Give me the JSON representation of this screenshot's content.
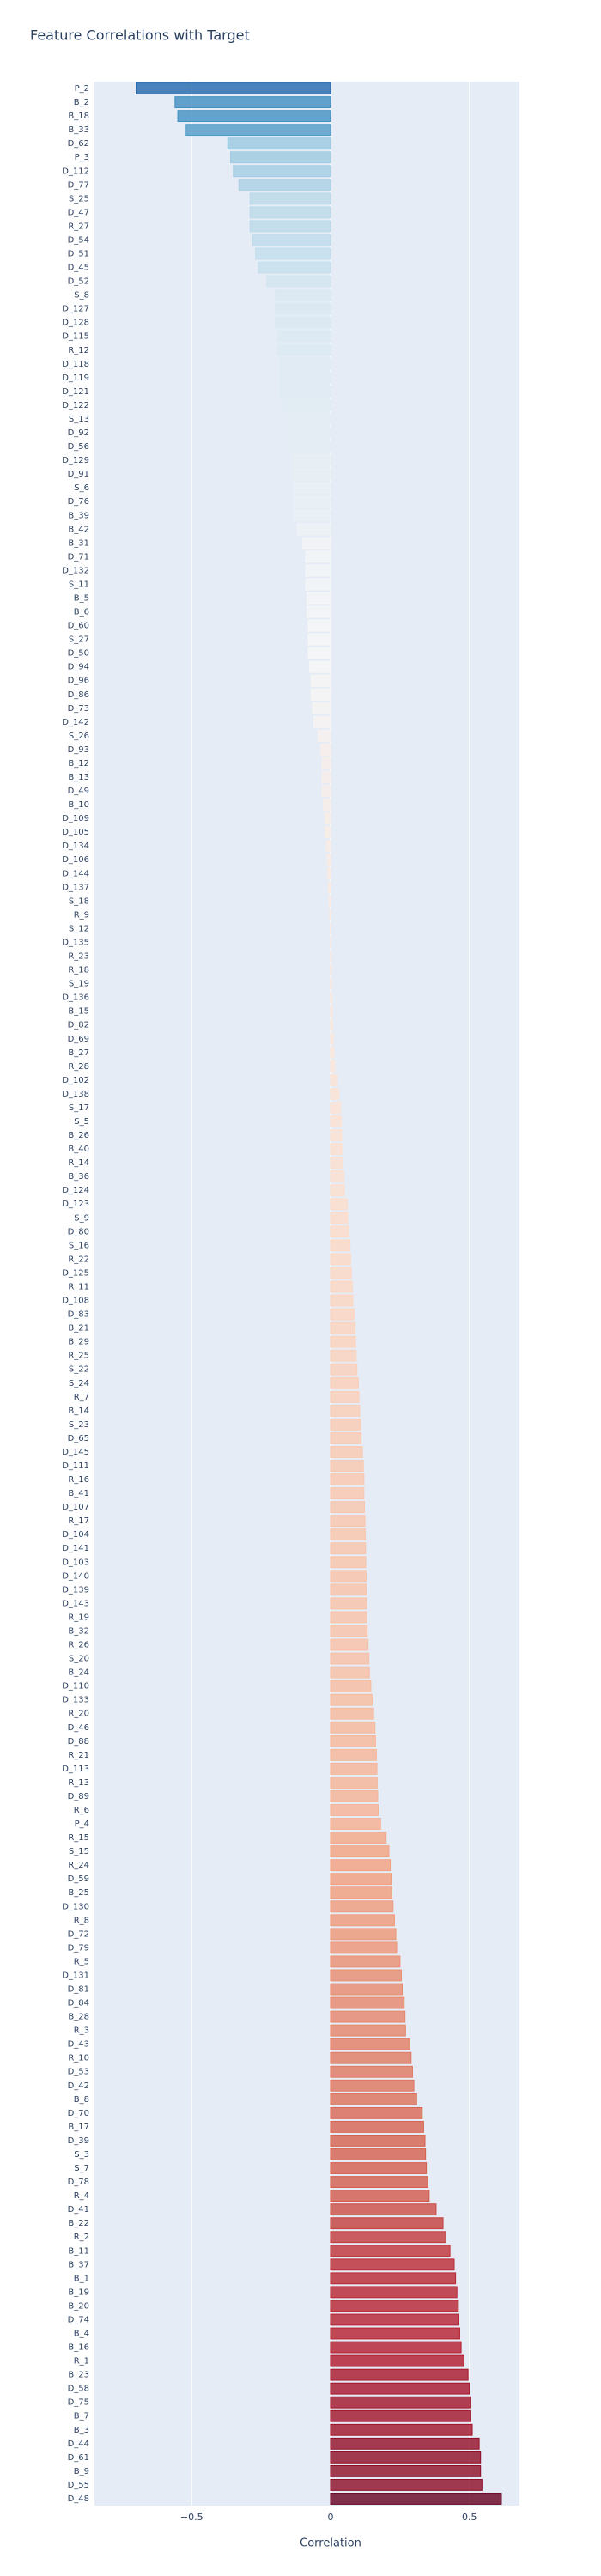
{
  "chart_data": {
    "type": "bar",
    "orientation": "horizontal",
    "title": "Feature Correlations with Target",
    "x_label": "Correlation",
    "categories": [
      "P_2",
      "B_2",
      "B_18",
      "B_33",
      "D_62",
      "P_3",
      "D_112",
      "D_77",
      "S_25",
      "D_47",
      "R_27",
      "D_54",
      "D_51",
      "D_45",
      "D_52",
      "S_8",
      "D_127",
      "D_128",
      "D_115",
      "R_12",
      "D_118",
      "D_119",
      "D_121",
      "D_122",
      "S_13",
      "D_92",
      "D_56",
      "D_129",
      "D_91",
      "S_6",
      "D_76",
      "B_39",
      "B_42",
      "B_31",
      "D_71",
      "D_132",
      "S_11",
      "B_5",
      "B_6",
      "D_60",
      "S_27",
      "D_50",
      "D_94",
      "D_96",
      "D_86",
      "D_73",
      "D_142",
      "S_26",
      "D_93",
      "B_12",
      "B_13",
      "D_49",
      "B_10",
      "D_109",
      "D_105",
      "D_134",
      "D_106",
      "D_144",
      "D_137",
      "S_18",
      "R_9",
      "S_12",
      "D_135",
      "R_23",
      "R_18",
      "S_19",
      "D_136",
      "B_15",
      "D_82",
      "D_69",
      "B_27",
      "R_28",
      "D_102",
      "D_138",
      "S_17",
      "S_5",
      "B_26",
      "B_40",
      "R_14",
      "B_36",
      "D_124",
      "D_123",
      "S_9",
      "D_80",
      "S_16",
      "R_22",
      "D_125",
      "R_11",
      "D_108",
      "D_83",
      "B_21",
      "B_29",
      "R_25",
      "S_22",
      "S_24",
      "R_7",
      "B_14",
      "S_23",
      "D_65",
      "D_145",
      "D_111",
      "R_16",
      "B_41",
      "D_107",
      "R_17",
      "D_104",
      "D_141",
      "D_103",
      "D_140",
      "D_139",
      "D_143",
      "R_19",
      "B_32",
      "R_26",
      "S_20",
      "B_24",
      "D_110",
      "D_133",
      "R_20",
      "D_46",
      "D_88",
      "R_21",
      "D_113",
      "R_13",
      "D_89",
      "R_6",
      "P_4",
      "R_15",
      "S_15",
      "R_24",
      "D_59",
      "B_25",
      "D_130",
      "R_8",
      "D_72",
      "D_79",
      "R_5",
      "D_131",
      "D_81",
      "D_84",
      "B_28",
      "R_3",
      "D_43",
      "R_10",
      "D_53",
      "D_42",
      "B_8",
      "D_70",
      "B_17",
      "D_39",
      "S_3",
      "S_7",
      "D_78",
      "R_4",
      "D_41",
      "B_22",
      "R_2",
      "B_11",
      "B_37",
      "B_1",
      "B_19",
      "B_20",
      "D_74",
      "B_4",
      "B_16",
      "R_1",
      "B_23",
      "D_58",
      "D_75",
      "B_7",
      "B_3",
      "D_44",
      "D_61",
      "B_9",
      "D_55",
      "D_48"
    ],
    "values": [
      -0.7,
      -0.56,
      -0.55,
      -0.52,
      -0.37,
      -0.36,
      -0.35,
      -0.33,
      -0.29,
      -0.29,
      -0.29,
      -0.28,
      -0.27,
      -0.26,
      -0.23,
      -0.2,
      -0.2,
      -0.2,
      -0.19,
      -0.19,
      -0.18,
      -0.18,
      -0.18,
      -0.17,
      -0.16,
      -0.16,
      -0.16,
      -0.14,
      -0.14,
      -0.13,
      -0.13,
      -0.13,
      -0.12,
      -0.1,
      -0.09,
      -0.09,
      -0.09,
      -0.085,
      -0.085,
      -0.08,
      -0.08,
      -0.08,
      -0.075,
      -0.07,
      -0.07,
      -0.065,
      -0.06,
      -0.045,
      -0.035,
      -0.03,
      -0.03,
      -0.03,
      -0.025,
      -0.02,
      -0.02,
      -0.015,
      -0.012,
      -0.01,
      -0.008,
      -0.005,
      -0.003,
      -0.002,
      -0.001,
      0.002,
      0.003,
      0.004,
      0.005,
      0.006,
      0.008,
      0.01,
      0.012,
      0.015,
      0.025,
      0.03,
      0.035,
      0.038,
      0.04,
      0.042,
      0.045,
      0.048,
      0.05,
      0.06,
      0.062,
      0.065,
      0.07,
      0.072,
      0.075,
      0.078,
      0.08,
      0.085,
      0.088,
      0.09,
      0.092,
      0.095,
      0.1,
      0.102,
      0.105,
      0.108,
      0.11,
      0.115,
      0.118,
      0.12,
      0.12,
      0.122,
      0.124,
      0.125,
      0.126,
      0.127,
      0.128,
      0.129,
      0.13,
      0.13,
      0.132,
      0.135,
      0.138,
      0.14,
      0.145,
      0.15,
      0.155,
      0.16,
      0.162,
      0.165,
      0.167,
      0.168,
      0.17,
      0.172,
      0.18,
      0.2,
      0.21,
      0.215,
      0.218,
      0.22,
      0.225,
      0.23,
      0.235,
      0.238,
      0.25,
      0.255,
      0.258,
      0.265,
      0.268,
      0.27,
      0.285,
      0.29,
      0.295,
      0.3,
      0.31,
      0.33,
      0.335,
      0.34,
      0.342,
      0.345,
      0.35,
      0.355,
      0.38,
      0.405,
      0.415,
      0.43,
      0.445,
      0.45,
      0.455,
      0.46,
      0.462,
      0.465,
      0.47,
      0.48,
      0.495,
      0.5,
      0.505,
      0.505,
      0.51,
      0.535,
      0.54,
      0.54,
      0.545,
      0.615
    ],
    "colorscale": [
      "#2166ac",
      "#4393c3",
      "#92c5de",
      "#d1e5f0",
      "#f7f7f7",
      "#fddbc7",
      "#f4a582",
      "#d6604d",
      "#b2182b",
      "#67001f"
    ],
    "xlim": [
      -0.85,
      0.68
    ],
    "xticks": [
      {
        "value": -0.5,
        "label": "−0.5"
      },
      0,
      0.5
    ],
    "grid": true
  }
}
